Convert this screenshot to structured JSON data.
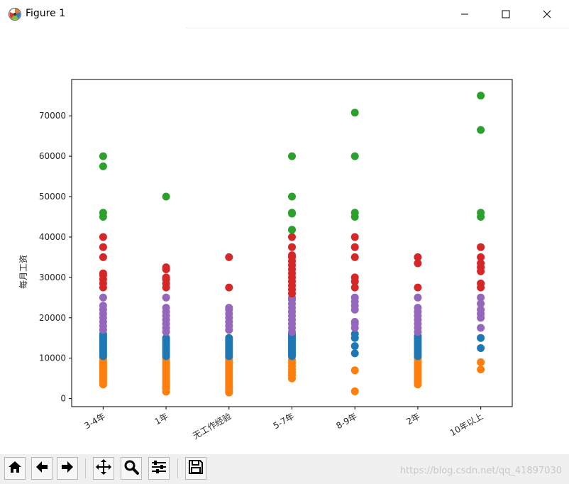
{
  "window": {
    "title": "Figure 1",
    "icons": {
      "app": "matplotlib-icon",
      "minimize": "minimize-icon",
      "maximize": "maximize-icon",
      "close": "close-icon"
    }
  },
  "toolbar": {
    "buttons": [
      {
        "name": "home-button",
        "icon": "home-icon"
      },
      {
        "name": "back-button",
        "icon": "arrow-left-icon"
      },
      {
        "name": "forward-button",
        "icon": "arrow-right-icon"
      },
      {
        "name": "pan-button",
        "icon": "move-icon"
      },
      {
        "name": "zoom-button",
        "icon": "magnifier-icon"
      },
      {
        "name": "configure-subplots-button",
        "icon": "sliders-icon"
      },
      {
        "name": "save-button",
        "icon": "floppy-disk-icon"
      }
    ]
  },
  "watermark": "https://blog.csdn.net/qq_41897030",
  "chart_data": {
    "type": "scatter",
    "title": "",
    "xlabel": "",
    "ylabel": "每月工资",
    "categories": [
      "3-4年",
      "1年",
      "无工作经验",
      "5-7年",
      "8-9年",
      "2年",
      "10年以上"
    ],
    "ylim": [
      -2000,
      79000
    ],
    "yticks": [
      0,
      10000,
      20000,
      30000,
      40000,
      50000,
      60000,
      70000
    ],
    "ytick_labels": [
      "0",
      "10000",
      "20000",
      "30000",
      "40000",
      "50000",
      "60000",
      "70000"
    ],
    "grid": false,
    "legend": "none",
    "series": [
      {
        "color": "#ff7f0e",
        "points": [
          [
            0,
            3500
          ],
          [
            0,
            4000
          ],
          [
            0,
            4500
          ],
          [
            0,
            5000
          ],
          [
            0,
            5500
          ],
          [
            0,
            6000
          ],
          [
            0,
            6500
          ],
          [
            0,
            7000
          ],
          [
            0,
            7500
          ],
          [
            0,
            8000
          ],
          [
            0,
            8500
          ],
          [
            0,
            9000
          ],
          [
            0,
            9500
          ],
          [
            0,
            10000
          ],
          [
            1,
            1700
          ],
          [
            1,
            2500
          ],
          [
            1,
            3000
          ],
          [
            1,
            3500
          ],
          [
            1,
            4000
          ],
          [
            1,
            4500
          ],
          [
            1,
            5000
          ],
          [
            1,
            5500
          ],
          [
            1,
            6000
          ],
          [
            1,
            6500
          ],
          [
            1,
            7000
          ],
          [
            1,
            7500
          ],
          [
            1,
            8000
          ],
          [
            1,
            8500
          ],
          [
            1,
            9000
          ],
          [
            1,
            9500
          ],
          [
            1,
            10000
          ],
          [
            2,
            1500
          ],
          [
            2,
            2000
          ],
          [
            2,
            2500
          ],
          [
            2,
            3000
          ],
          [
            2,
            3500
          ],
          [
            2,
            4000
          ],
          [
            2,
            4500
          ],
          [
            2,
            5000
          ],
          [
            2,
            5500
          ],
          [
            2,
            6000
          ],
          [
            2,
            6500
          ],
          [
            2,
            7000
          ],
          [
            2,
            7500
          ],
          [
            2,
            8000
          ],
          [
            2,
            8500
          ],
          [
            2,
            9000
          ],
          [
            2,
            9500
          ],
          [
            2,
            10000
          ],
          [
            3,
            5000
          ],
          [
            3,
            5800
          ],
          [
            3,
            6500
          ],
          [
            3,
            7200
          ],
          [
            3,
            8000
          ],
          [
            3,
            8800
          ],
          [
            3,
            9500
          ],
          [
            4,
            1800
          ],
          [
            4,
            7000
          ],
          [
            5,
            3500
          ],
          [
            5,
            4000
          ],
          [
            5,
            4500
          ],
          [
            5,
            5000
          ],
          [
            5,
            5500
          ],
          [
            5,
            6000
          ],
          [
            5,
            6500
          ],
          [
            5,
            7000
          ],
          [
            5,
            7500
          ],
          [
            5,
            8000
          ],
          [
            5,
            8500
          ],
          [
            5,
            9000
          ],
          [
            5,
            9500
          ],
          [
            5,
            10000
          ],
          [
            6,
            7200
          ],
          [
            6,
            9000
          ]
        ]
      },
      {
        "color": "#1f77b4",
        "points": [
          [
            0,
            10500
          ],
          [
            0,
            11000
          ],
          [
            0,
            11500
          ],
          [
            0,
            12000
          ],
          [
            0,
            12500
          ],
          [
            0,
            13000
          ],
          [
            0,
            13500
          ],
          [
            0,
            14000
          ],
          [
            0,
            14500
          ],
          [
            0,
            15000
          ],
          [
            0,
            15500
          ],
          [
            0,
            16000
          ],
          [
            1,
            10500
          ],
          [
            1,
            11000
          ],
          [
            1,
            11500
          ],
          [
            1,
            12000
          ],
          [
            1,
            12500
          ],
          [
            1,
            13000
          ],
          [
            1,
            13500
          ],
          [
            1,
            14000
          ],
          [
            1,
            14500
          ],
          [
            1,
            15000
          ],
          [
            2,
            10500
          ],
          [
            2,
            11000
          ],
          [
            2,
            11500
          ],
          [
            2,
            12000
          ],
          [
            2,
            12500
          ],
          [
            2,
            13000
          ],
          [
            2,
            13500
          ],
          [
            2,
            14000
          ],
          [
            2,
            14500
          ],
          [
            2,
            15000
          ],
          [
            3,
            10500
          ],
          [
            3,
            11000
          ],
          [
            3,
            11500
          ],
          [
            3,
            12000
          ],
          [
            3,
            12500
          ],
          [
            3,
            13000
          ],
          [
            3,
            13500
          ],
          [
            3,
            14000
          ],
          [
            3,
            14500
          ],
          [
            3,
            15000
          ],
          [
            3,
            15500
          ],
          [
            3,
            16000
          ],
          [
            4,
            11200
          ],
          [
            4,
            13000
          ],
          [
            4,
            15000
          ],
          [
            4,
            16000
          ],
          [
            5,
            10500
          ],
          [
            5,
            11000
          ],
          [
            5,
            11500
          ],
          [
            5,
            12000
          ],
          [
            5,
            12500
          ],
          [
            5,
            13000
          ],
          [
            5,
            13500
          ],
          [
            5,
            14000
          ],
          [
            5,
            14500
          ],
          [
            5,
            15000
          ],
          [
            5,
            15500
          ],
          [
            6,
            12500
          ],
          [
            6,
            15000
          ]
        ]
      },
      {
        "color": "#9467bd",
        "points": [
          [
            0,
            17000
          ],
          [
            0,
            18000
          ],
          [
            0,
            19000
          ],
          [
            0,
            20000
          ],
          [
            0,
            21000
          ],
          [
            0,
            22000
          ],
          [
            0,
            23000
          ],
          [
            0,
            25000
          ],
          [
            1,
            16500
          ],
          [
            1,
            17500
          ],
          [
            1,
            18500
          ],
          [
            1,
            19500
          ],
          [
            1,
            20500
          ],
          [
            1,
            21500
          ],
          [
            1,
            22500
          ],
          [
            1,
            25000
          ],
          [
            2,
            17000
          ],
          [
            2,
            18000
          ],
          [
            2,
            19000
          ],
          [
            2,
            20000
          ],
          [
            2,
            21000
          ],
          [
            2,
            22000
          ],
          [
            2,
            22500
          ],
          [
            3,
            16500
          ],
          [
            3,
            17500
          ],
          [
            3,
            18500
          ],
          [
            3,
            19500
          ],
          [
            3,
            20500
          ],
          [
            3,
            21500
          ],
          [
            3,
            22500
          ],
          [
            3,
            23500
          ],
          [
            3,
            24500
          ],
          [
            3,
            25000
          ],
          [
            4,
            17500
          ],
          [
            4,
            18500
          ],
          [
            4,
            19000
          ],
          [
            4,
            22000
          ],
          [
            4,
            23000
          ],
          [
            4,
            24000
          ],
          [
            4,
            25000
          ],
          [
            5,
            16500
          ],
          [
            5,
            17500
          ],
          [
            5,
            18500
          ],
          [
            5,
            19500
          ],
          [
            5,
            20500
          ],
          [
            5,
            21500
          ],
          [
            5,
            22500
          ],
          [
            5,
            25000
          ],
          [
            6,
            17500
          ],
          [
            6,
            20000
          ],
          [
            6,
            21000
          ],
          [
            6,
            22000
          ],
          [
            6,
            23500
          ],
          [
            6,
            25000
          ]
        ]
      },
      {
        "color": "#d62728",
        "points": [
          [
            0,
            27500
          ],
          [
            0,
            28500
          ],
          [
            0,
            29500
          ],
          [
            0,
            30500
          ],
          [
            0,
            31000
          ],
          [
            0,
            35000
          ],
          [
            0,
            37500
          ],
          [
            0,
            40000
          ],
          [
            1,
            27500
          ],
          [
            1,
            28500
          ],
          [
            1,
            29500
          ],
          [
            1,
            30000
          ],
          [
            1,
            32000
          ],
          [
            1,
            32500
          ],
          [
            2,
            27500
          ],
          [
            2,
            35000
          ],
          [
            3,
            26000
          ],
          [
            3,
            27000
          ],
          [
            3,
            28000
          ],
          [
            3,
            29000
          ],
          [
            3,
            30000
          ],
          [
            3,
            31000
          ],
          [
            3,
            32000
          ],
          [
            3,
            33000
          ],
          [
            3,
            34000
          ],
          [
            3,
            35000
          ],
          [
            3,
            35500
          ],
          [
            3,
            37500
          ],
          [
            3,
            40000
          ],
          [
            4,
            27500
          ],
          [
            4,
            29000
          ],
          [
            4,
            30000
          ],
          [
            4,
            35000
          ],
          [
            4,
            37500
          ],
          [
            4,
            40000
          ],
          [
            5,
            27500
          ],
          [
            5,
            33500
          ],
          [
            5,
            35000
          ],
          [
            6,
            27500
          ],
          [
            6,
            28500
          ],
          [
            6,
            31500
          ],
          [
            6,
            32500
          ],
          [
            6,
            33500
          ],
          [
            6,
            35000
          ],
          [
            6,
            37500
          ]
        ]
      },
      {
        "color": "#2ca02c",
        "points": [
          [
            0,
            45000
          ],
          [
            0,
            46000
          ],
          [
            0,
            57500
          ],
          [
            0,
            60000
          ],
          [
            1,
            50000
          ],
          [
            3,
            41800
          ],
          [
            3,
            45800
          ],
          [
            3,
            46000
          ],
          [
            3,
            50000
          ],
          [
            3,
            60000
          ],
          [
            4,
            45000
          ],
          [
            4,
            46000
          ],
          [
            4,
            60000
          ],
          [
            4,
            70800
          ],
          [
            6,
            45000
          ],
          [
            6,
            46000
          ],
          [
            6,
            66500
          ],
          [
            6,
            75000
          ]
        ]
      }
    ]
  }
}
